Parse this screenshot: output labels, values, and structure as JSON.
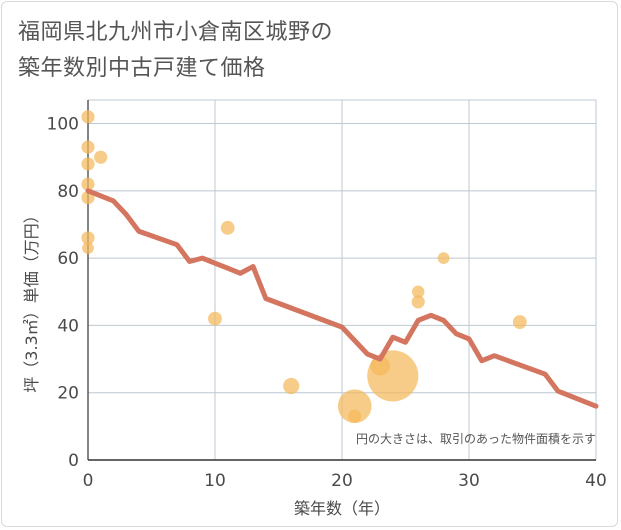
{
  "title_lines": [
    "福岡県北九州市小倉南区城野の",
    "築年数別中古戸建て価格"
  ],
  "chart_data": {
    "type": "scatter",
    "title": "福岡県北九州市小倉南区城野の築年数別中古戸建て価格",
    "xlabel": "築年数（年）",
    "ylabel": "坪（3.3㎡）単価（万円）",
    "xlim": [
      0,
      40
    ],
    "ylim": [
      0,
      107
    ],
    "xticks": [
      0,
      10,
      20,
      30,
      40
    ],
    "yticks": [
      0,
      20,
      40,
      60,
      80,
      100
    ],
    "grid": true,
    "annotation": "円の大きさは、取引のあった物件面積を示す",
    "bubble_color": "#f4b95a",
    "line_color": "#d47560",
    "scatter": [
      {
        "x": 0,
        "y": 102,
        "size": 1
      },
      {
        "x": 0,
        "y": 93,
        "size": 1
      },
      {
        "x": 0,
        "y": 88,
        "size": 1
      },
      {
        "x": 0,
        "y": 82,
        "size": 1
      },
      {
        "x": 0,
        "y": 78,
        "size": 1
      },
      {
        "x": 0,
        "y": 66,
        "size": 1
      },
      {
        "x": 0,
        "y": 63,
        "size": 0.8
      },
      {
        "x": 1,
        "y": 90,
        "size": 1
      },
      {
        "x": 10,
        "y": 42,
        "size": 1.1
      },
      {
        "x": 11,
        "y": 69,
        "size": 1.1
      },
      {
        "x": 16,
        "y": 22,
        "size": 1.5
      },
      {
        "x": 21,
        "y": 16,
        "size": 6.5
      },
      {
        "x": 21,
        "y": 13,
        "size": 1
      },
      {
        "x": 23,
        "y": 28,
        "size": 2.2
      },
      {
        "x": 24,
        "y": 25,
        "size": 15
      },
      {
        "x": 26,
        "y": 50,
        "size": 0.9
      },
      {
        "x": 26,
        "y": 47,
        "size": 1
      },
      {
        "x": 28,
        "y": 60,
        "size": 0.8
      },
      {
        "x": 34,
        "y": 41,
        "size": 1.1
      }
    ],
    "series": [
      {
        "name": "trend",
        "x": [
          0,
          2,
          3,
          4,
          7,
          8,
          9,
          10,
          11,
          12,
          13,
          14,
          20,
          21,
          22,
          23,
          24,
          25,
          26,
          27,
          28,
          29,
          30,
          31,
          32,
          36,
          37,
          40
        ],
        "y": [
          80,
          77,
          73,
          68,
          64,
          59,
          60,
          58.5,
          57,
          55.5,
          57.5,
          48,
          39.5,
          35.5,
          31.5,
          30,
          36.5,
          35,
          41.5,
          43,
          41.5,
          37.5,
          36,
          29.5,
          31,
          25.5,
          20.5,
          16
        ]
      }
    ]
  }
}
